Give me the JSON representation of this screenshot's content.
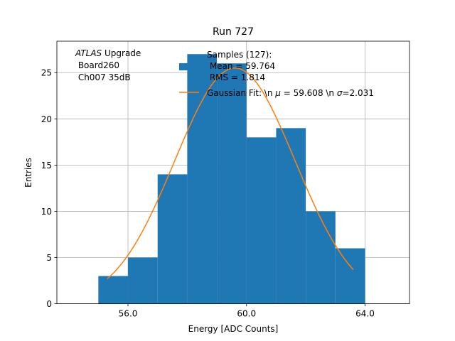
{
  "chart_data": {
    "type": "bar",
    "title": "Run 727",
    "xlabel": "Energy [ADC Counts]",
    "ylabel": "Entries",
    "xlim": [
      53.6,
      65.5
    ],
    "ylim": [
      0,
      28.4
    ],
    "grid": true,
    "x_ticks": [
      56,
      60,
      64
    ],
    "x_tick_labels": [
      "56.0",
      "60.0",
      "64.0"
    ],
    "y_ticks": [
      0,
      5,
      10,
      15,
      20,
      25
    ],
    "y_tick_labels": [
      "0",
      "5",
      "10",
      "15",
      "20",
      "25"
    ],
    "bins": [
      {
        "x0": 55,
        "x1": 56,
        "value": 3
      },
      {
        "x0": 56,
        "x1": 57,
        "value": 5
      },
      {
        "x0": 57,
        "x1": 58,
        "value": 14
      },
      {
        "x0": 58,
        "x1": 59,
        "value": 27
      },
      {
        "x0": 59,
        "x1": 60,
        "value": 26
      },
      {
        "x0": 60,
        "x1": 61,
        "value": 18
      },
      {
        "x0": 61,
        "x1": 62,
        "value": 19
      },
      {
        "x0": 62,
        "x1": 63,
        "value": 10
      },
      {
        "x0": 63,
        "x1": 64,
        "value": 6
      }
    ],
    "fit": {
      "mu": 59.608,
      "sigma": 2.031,
      "amplitude": 25.5,
      "x_range": [
        55.3,
        63.6
      ]
    },
    "colors": {
      "bars": "#1f77b4",
      "fit": "#ff7f0e",
      "grid": "#b0b0b0"
    },
    "annotation": {
      "italic": "ATLAS",
      "rest": " Upgrade",
      "line2": " Board260",
      "line3": " Ch007 35dB"
    },
    "legend": {
      "position": "top-right",
      "hist_line1": "Samples (127):",
      "hist_line2": " Mean = 59.764",
      "hist_line3": " RMS = 1.814",
      "fit_prefix": "Gaussian Fit: \\n ",
      "fit_mu_symbol": "μ",
      "fit_mid": " = 59.608 \\n ",
      "fit_sigma_symbol": "σ",
      "fit_suffix": "=2.031"
    }
  }
}
